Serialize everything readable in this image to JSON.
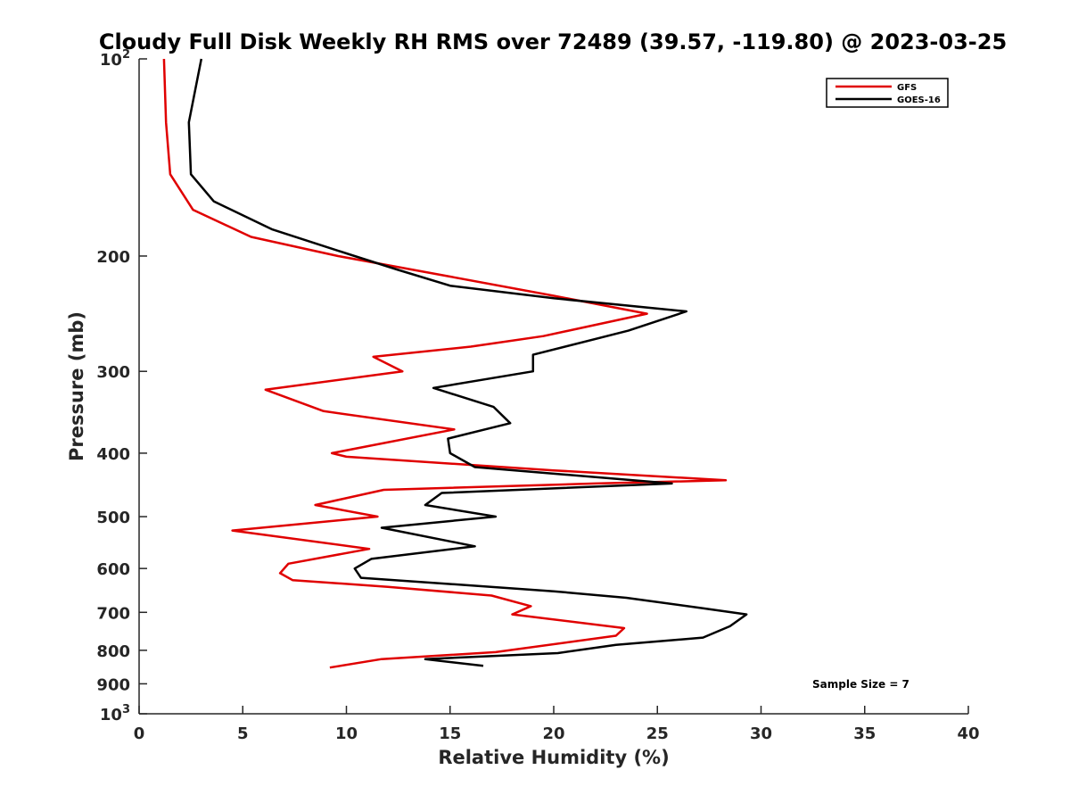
{
  "chart_data": {
    "type": "line",
    "title": "Cloudy Full Disk Weekly RH RMS over 72489 (39.57, -119.80) @ 2023-03-25",
    "xlabel": "Relative Humidity (%)",
    "ylabel": "Pressure (mb)",
    "xlim": [
      0,
      40
    ],
    "ylim": [
      1000,
      100
    ],
    "yscale": "log",
    "y_reversed": true,
    "grid": false,
    "legend_position": "top-right",
    "x_ticks": [
      "0",
      "5",
      "10",
      "15",
      "20",
      "25",
      "30",
      "35",
      "40"
    ],
    "x_tick_values": [
      0,
      5,
      10,
      15,
      20,
      25,
      30,
      35,
      40
    ],
    "y_ticks": [
      {
        "value": 100,
        "base": "10",
        "exp": "2"
      },
      {
        "value": 200,
        "label": "200"
      },
      {
        "value": 300,
        "label": "300"
      },
      {
        "value": 400,
        "label": "400"
      },
      {
        "value": 500,
        "label": "500"
      },
      {
        "value": 600,
        "label": "600"
      },
      {
        "value": 700,
        "label": "700"
      },
      {
        "value": 800,
        "label": "800"
      },
      {
        "value": 900,
        "label": "900"
      },
      {
        "value": 1000,
        "base": "10",
        "exp": "3"
      }
    ],
    "annotation": "Sample Size = 7",
    "series": [
      {
        "name": "GFS",
        "color": "#e00000",
        "points": [
          {
            "x": 1.2,
            "y": 100
          },
          {
            "x": 1.3,
            "y": 125
          },
          {
            "x": 1.5,
            "y": 150
          },
          {
            "x": 2.6,
            "y": 170
          },
          {
            "x": 5.4,
            "y": 187
          },
          {
            "x": 9.6,
            "y": 200
          },
          {
            "x": 15.0,
            "y": 215
          },
          {
            "x": 20.0,
            "y": 230
          },
          {
            "x": 24.5,
            "y": 245
          },
          {
            "x": 19.5,
            "y": 265
          },
          {
            "x": 16.0,
            "y": 275
          },
          {
            "x": 11.3,
            "y": 285
          },
          {
            "x": 12.7,
            "y": 300
          },
          {
            "x": 6.1,
            "y": 320
          },
          {
            "x": 8.9,
            "y": 345
          },
          {
            "x": 15.2,
            "y": 368
          },
          {
            "x": 9.3,
            "y": 400
          },
          {
            "x": 10.0,
            "y": 405
          },
          {
            "x": 20.0,
            "y": 425
          },
          {
            "x": 28.3,
            "y": 440
          },
          {
            "x": 22.0,
            "y": 445
          },
          {
            "x": 11.8,
            "y": 455
          },
          {
            "x": 8.5,
            "y": 480
          },
          {
            "x": 11.5,
            "y": 500
          },
          {
            "x": 4.5,
            "y": 525
          },
          {
            "x": 11.1,
            "y": 560
          },
          {
            "x": 7.2,
            "y": 590
          },
          {
            "x": 6.8,
            "y": 610
          },
          {
            "x": 7.4,
            "y": 625
          },
          {
            "x": 12.0,
            "y": 640
          },
          {
            "x": 17.0,
            "y": 660
          },
          {
            "x": 18.9,
            "y": 685
          },
          {
            "x": 18.0,
            "y": 705
          },
          {
            "x": 23.4,
            "y": 740
          },
          {
            "x": 23.0,
            "y": 760
          },
          {
            "x": 17.2,
            "y": 805
          },
          {
            "x": 11.7,
            "y": 825
          },
          {
            "x": 9.2,
            "y": 850
          }
        ]
      },
      {
        "name": "GOES-16",
        "color": "#000000",
        "points": [
          {
            "x": 3.0,
            "y": 100
          },
          {
            "x": 2.4,
            "y": 125
          },
          {
            "x": 2.5,
            "y": 150
          },
          {
            "x": 3.6,
            "y": 165
          },
          {
            "x": 6.4,
            "y": 182
          },
          {
            "x": 10.4,
            "y": 200
          },
          {
            "x": 12.5,
            "y": 210
          },
          {
            "x": 15.0,
            "y": 222
          },
          {
            "x": 20.0,
            "y": 232
          },
          {
            "x": 26.4,
            "y": 243
          },
          {
            "x": 23.6,
            "y": 260
          },
          {
            "x": 19.0,
            "y": 283
          },
          {
            "x": 19.0,
            "y": 300
          },
          {
            "x": 14.2,
            "y": 318
          },
          {
            "x": 17.1,
            "y": 340
          },
          {
            "x": 17.9,
            "y": 360
          },
          {
            "x": 14.9,
            "y": 380
          },
          {
            "x": 15.0,
            "y": 400
          },
          {
            "x": 16.2,
            "y": 420
          },
          {
            "x": 25.7,
            "y": 445
          },
          {
            "x": 14.6,
            "y": 460
          },
          {
            "x": 13.8,
            "y": 480
          },
          {
            "x": 17.2,
            "y": 500
          },
          {
            "x": 11.7,
            "y": 520
          },
          {
            "x": 16.2,
            "y": 555
          },
          {
            "x": 11.2,
            "y": 580
          },
          {
            "x": 10.4,
            "y": 600
          },
          {
            "x": 10.7,
            "y": 620
          },
          {
            "x": 20.0,
            "y": 650
          },
          {
            "x": 23.5,
            "y": 665
          },
          {
            "x": 27.2,
            "y": 690
          },
          {
            "x": 29.3,
            "y": 705
          },
          {
            "x": 28.5,
            "y": 735
          },
          {
            "x": 27.2,
            "y": 765
          },
          {
            "x": 23.0,
            "y": 785
          },
          {
            "x": 20.2,
            "y": 808
          },
          {
            "x": 13.8,
            "y": 825
          },
          {
            "x": 16.6,
            "y": 845
          }
        ]
      }
    ]
  }
}
